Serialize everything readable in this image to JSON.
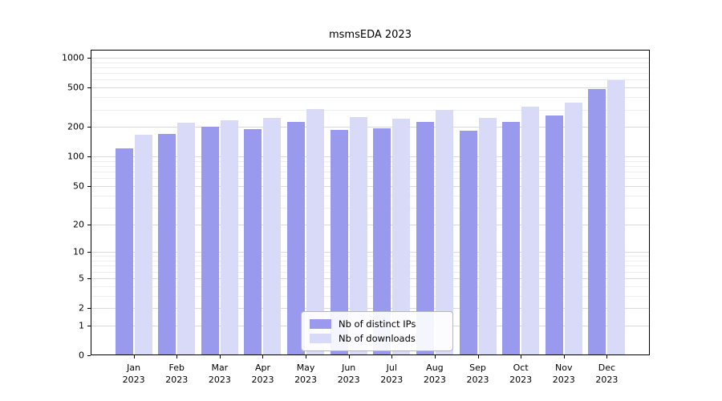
{
  "figure": {
    "title": "msmsEDA 2023"
  },
  "colors": {
    "ips_bar": "#9999ee",
    "downloads_bar": "#d9d9f8",
    "grid_major": "#d9d9d9",
    "grid_minor": "#ededed",
    "axis": "#000000",
    "background": "#ffffff"
  },
  "legend": {
    "items": [
      {
        "label": "Nb of distinct IPs",
        "color": "#9999ee"
      },
      {
        "label": "Nb of downloads",
        "color": "#d9d9f8"
      }
    ]
  },
  "chart_data": {
    "type": "bar",
    "title": "msmsEDA 2023",
    "categories": [
      {
        "month": "Jan",
        "year": "2023"
      },
      {
        "month": "Feb",
        "year": "2023"
      },
      {
        "month": "Mar",
        "year": "2023"
      },
      {
        "month": "Apr",
        "year": "2023"
      },
      {
        "month": "May",
        "year": "2023"
      },
      {
        "month": "Jun",
        "year": "2023"
      },
      {
        "month": "Jul",
        "year": "2023"
      },
      {
        "month": "Aug",
        "year": "2023"
      },
      {
        "month": "Sep",
        "year": "2023"
      },
      {
        "month": "Oct",
        "year": "2023"
      },
      {
        "month": "Nov",
        "year": "2023"
      },
      {
        "month": "Dec",
        "year": "2023"
      }
    ],
    "series": [
      {
        "name": "Nb of distinct IPs",
        "color": "#9999ee",
        "values": [
          120,
          170,
          200,
          190,
          226,
          188,
          193,
          225,
          183,
          225,
          262,
          480
        ]
      },
      {
        "name": "Nb of downloads",
        "color": "#d9d9f8",
        "values": [
          165,
          220,
          235,
          248,
          305,
          250,
          240,
          295,
          248,
          320,
          355,
          595
        ]
      }
    ],
    "yscale": "log1p",
    "yticks": [
      1000,
      500,
      200,
      100,
      50,
      20,
      10,
      5,
      2,
      1,
      0
    ],
    "ylim": [
      0,
      1000
    ],
    "grid": true,
    "legend_position": "lower center"
  }
}
